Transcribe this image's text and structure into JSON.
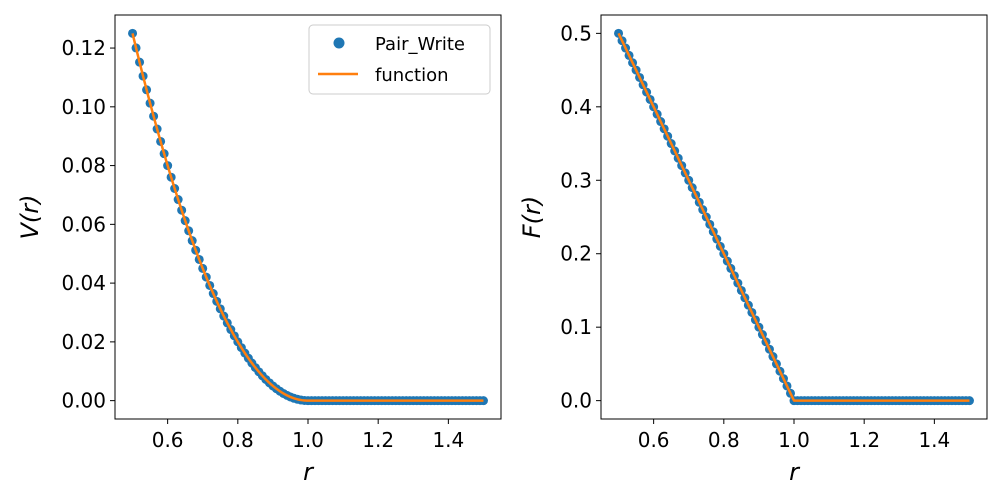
{
  "chart_data": [
    {
      "type": "line",
      "xlabel": "r",
      "ylabel": "V(r)",
      "xlim": [
        0.45,
        1.55
      ],
      "ylim": [
        -0.00625,
        0.13125
      ],
      "xticks": [
        0.6,
        0.8,
        1.0,
        1.2,
        1.4
      ],
      "xtick_labels": [
        "0.6",
        "0.8",
        "1.0",
        "1.2",
        "1.4"
      ],
      "yticks": [
        0.0,
        0.02,
        0.04,
        0.06,
        0.08,
        0.1,
        0.12
      ],
      "ytick_labels": [
        "0.00",
        "0.02",
        "0.04",
        "0.06",
        "0.08",
        "0.10",
        "0.12"
      ],
      "grid": false,
      "legend": {
        "placement": "top-right",
        "entries": [
          "Pair_Write",
          "function"
        ]
      },
      "series": [
        {
          "name": "Pair_Write",
          "style": "markers",
          "color": "#1f77b4",
          "function": "0.5*(1-r)^2 for r<1, else 0",
          "x_range": [
            0.5,
            1.5
          ],
          "n_points": 101
        },
        {
          "name": "function",
          "style": "line",
          "color": "#ff7f0e",
          "function": "0.5*(1-r)^2 for r<1, else 0",
          "x_range": [
            0.5,
            1.5
          ]
        }
      ]
    },
    {
      "type": "line",
      "xlabel": "r",
      "ylabel": "F(r)",
      "xlim": [
        0.45,
        1.55
      ],
      "ylim": [
        -0.025,
        0.525
      ],
      "xticks": [
        0.6,
        0.8,
        1.0,
        1.2,
        1.4
      ],
      "xtick_labels": [
        "0.6",
        "0.8",
        "1.0",
        "1.2",
        "1.4"
      ],
      "yticks": [
        0.0,
        0.1,
        0.2,
        0.3,
        0.4,
        0.5
      ],
      "ytick_labels": [
        "0.0",
        "0.1",
        "0.2",
        "0.3",
        "0.4",
        "0.5"
      ],
      "grid": false,
      "series": [
        {
          "name": "Pair_Write",
          "style": "markers",
          "color": "#1f77b4",
          "function": "(1-r) for r<1, else 0",
          "x_range": [
            0.5,
            1.5
          ],
          "n_points": 101
        },
        {
          "name": "function",
          "style": "line",
          "color": "#ff7f0e",
          "function": "(1-r) for r<1, else 0",
          "x_range": [
            0.5,
            1.5
          ]
        }
      ]
    }
  ]
}
